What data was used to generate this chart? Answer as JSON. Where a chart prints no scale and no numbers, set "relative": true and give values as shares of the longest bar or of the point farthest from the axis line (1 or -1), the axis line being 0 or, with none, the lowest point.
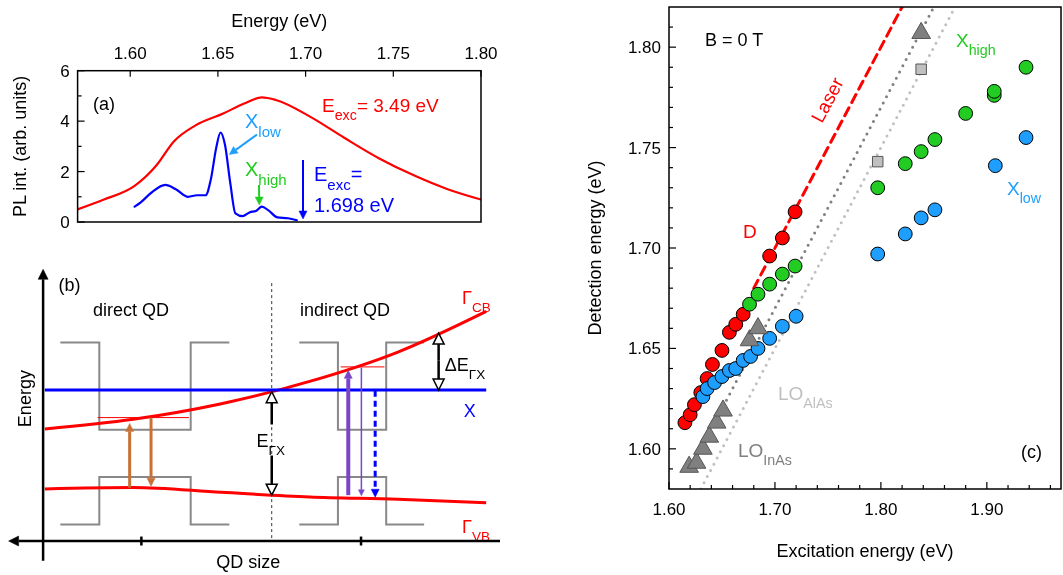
{
  "chart_data": [
    {
      "type": "line",
      "xlabel": "Energy (eV)",
      "ylabel": "PL int. (arb. units)",
      "xlim": [
        1.57,
        1.8
      ],
      "xticks": [
        {
          "value": 1.6,
          "label": "1.60"
        },
        {
          "value": 1.65,
          "label": "1.65"
        },
        {
          "value": 1.7,
          "label": "1.70"
        },
        {
          "value": 1.75,
          "label": "1.75"
        },
        {
          "value": 1.8,
          "label": "1.80"
        }
      ],
      "ylim": [
        0,
        6
      ],
      "yticks": [
        0,
        {
          "value": 1,
          "label": null
        },
        2,
        {
          "value": 3,
          "label": null
        },
        4,
        {
          "value": 5,
          "label": null
        },
        6
      ],
      "series": [
        {
          "name": "E$_{exc}$= 3.49 eV",
          "color": "#ff0000",
          "x": [
            1.57,
            1.585,
            1.6025,
            1.615,
            1.625,
            1.637,
            1.653,
            1.665,
            1.675,
            1.683,
            1.703,
            1.722,
            1.742,
            1.762,
            1.781,
            1.8
          ],
          "values": [
            0.5,
            0.89,
            1.43,
            2.25,
            3.2,
            3.82,
            4.3,
            4.7,
            4.94,
            4.84,
            4.16,
            3.34,
            2.52,
            1.84,
            1.3,
            0.89
          ]
        },
        {
          "color": "#0000ff",
          "x": [
            1.6025,
            1.606,
            1.612,
            1.62,
            1.626,
            1.633,
            1.638,
            1.643,
            1.646,
            1.649,
            1.6515,
            1.654,
            1.657,
            1.66,
            1.664,
            1.668,
            1.672,
            1.675,
            1.679,
            1.684,
            1.69,
            1.695
          ],
          "values": [
            0.61,
            0.78,
            1.16,
            1.47,
            1.3,
            1.0,
            1.06,
            1.06,
            1.7,
            2.93,
            3.55,
            3.07,
            1.57,
            0.34,
            0.23,
            0.38,
            0.45,
            0.61,
            0.45,
            0.18,
            0.15,
            0.07
          ]
        }
      ],
      "annotations": [
        "(a)",
        "X$_{low}$",
        "X$_{high}$",
        "E$_{exc}$= 1.698 eV"
      ]
    },
    {
      "type": "line",
      "relative": true,
      "xlabel": "QD size",
      "ylabel": "Energy",
      "categories": [
        null,
        null,
        null,
        null,
        null,
        null
      ],
      "series": [
        {
          "name": "Γ$_{CB}$",
          "color": "#ff0000",
          "values": [
            0.488,
            0.53,
            0.598,
            0.695,
            0.823,
            1
          ]
        },
        {
          "name": "X",
          "color": "#0000ff",
          "values": [
            0.658,
            0.658,
            0.658,
            0.658,
            0.658,
            0.658
          ]
        },
        {
          "name": "Γ$_{VB}$",
          "color": "#ff0000",
          "values": [
            0.227,
            0.233,
            0.212,
            0.192,
            0.182,
            0.167
          ]
        }
      ],
      "annotations": [
        "(b)",
        "direct QD",
        "indirect QD",
        "E$_{ΓX}$",
        "ΔE$_{ΓX}$"
      ]
    },
    {
      "type": "scatter",
      "xlabel": "Excitation energy (eV)",
      "ylabel": "Detection energy (eV)",
      "xlim": [
        1.6,
        1.97
      ],
      "xticks": [
        {
          "value": 1.6,
          "label": "1.60"
        },
        {
          "value": 1.62,
          "label": null
        },
        {
          "value": 1.64,
          "label": null
        },
        {
          "value": 1.66,
          "label": null
        },
        {
          "value": 1.68,
          "label": null
        },
        {
          "value": 1.7,
          "label": "1.70"
        },
        {
          "value": 1.72,
          "label": null
        },
        {
          "value": 1.74,
          "label": null
        },
        {
          "value": 1.76,
          "label": null
        },
        {
          "value": 1.78,
          "label": null
        },
        {
          "value": 1.8,
          "label": "1.80"
        },
        {
          "value": 1.82,
          "label": null
        },
        {
          "value": 1.84,
          "label": null
        },
        {
          "value": 1.86,
          "label": null
        },
        {
          "value": 1.88,
          "label": null
        },
        {
          "value": 1.9,
          "label": "1.90"
        },
        {
          "value": 1.92,
          "label": null
        },
        {
          "value": 1.94,
          "label": null
        },
        {
          "value": 1.96,
          "label": null
        }
      ],
      "ylim": [
        1.58,
        1.82
      ],
      "yticks": [
        {
          "value": 1.59,
          "label": null
        },
        {
          "value": 1.6,
          "label": "1.60"
        },
        {
          "value": 1.61,
          "label": null
        },
        {
          "value": 1.62,
          "label": null
        },
        {
          "value": 1.63,
          "label": null
        },
        {
          "value": 1.64,
          "label": null
        },
        {
          "value": 1.65,
          "label": "1.65"
        },
        {
          "value": 1.66,
          "label": null
        },
        {
          "value": 1.67,
          "label": null
        },
        {
          "value": 1.68,
          "label": null
        },
        {
          "value": 1.69,
          "label": null
        },
        {
          "value": 1.7,
          "label": "1.70"
        },
        {
          "value": 1.71,
          "label": null
        },
        {
          "value": 1.72,
          "label": null
        },
        {
          "value": 1.73,
          "label": null
        },
        {
          "value": 1.74,
          "label": null
        },
        {
          "value": 1.75,
          "label": "1.75"
        },
        {
          "value": 1.76,
          "label": null
        },
        {
          "value": 1.77,
          "label": null
        },
        {
          "value": 1.78,
          "label": null
        },
        {
          "value": 1.79,
          "label": null
        },
        {
          "value": 1.8,
          "label": "1.80"
        },
        {
          "value": 1.81,
          "label": null
        }
      ],
      "marker": "circle",
      "series": [
        {
          "type": "line",
          "name": "Laser",
          "color": "#ff0000",
          "line_style": "dashed",
          "marker": "none",
          "x": [
            1.68,
            1.82
          ],
          "values": [
            1.68,
            1.82
          ]
        },
        {
          "type": "line",
          "name": "LO$_{InAs}$",
          "color": "#808080",
          "line_style": "dotted",
          "marker": "none",
          "x": [
            1.645,
            1.849
          ],
          "values": [
            1.615,
            1.819
          ]
        },
        {
          "type": "line",
          "name": "LO$_{AlAs}$",
          "color": "#c0c0c0",
          "line_style": "dotted",
          "marker": "none",
          "x": [
            1.63,
            1.87
          ],
          "values": [
            1.58,
            1.82
          ]
        },
        {
          "name": "D",
          "color": "#ff0000",
          "x": [
            1.615,
            1.62,
            1.624,
            1.63,
            1.636,
            1.641,
            1.65,
            1.657,
            1.663,
            1.67,
            1.695,
            1.707,
            1.719
          ],
          "values": [
            1.613,
            1.617,
            1.622,
            1.628,
            1.635,
            1.642,
            1.649,
            1.658,
            1.662,
            1.667,
            1.696,
            1.705,
            1.718
          ]
        },
        {
          "name": "X$_{high}$",
          "color": "#22cc22",
          "x": [
            1.676,
            1.684,
            1.695,
            1.707,
            1.719,
            1.797,
            1.823,
            1.838,
            1.851,
            1.88,
            1.907,
            1.907,
            1.937
          ],
          "values": [
            1.672,
            1.677,
            1.682,
            1.687,
            1.691,
            1.73,
            1.742,
            1.748,
            1.754,
            1.767,
            1.776,
            1.778,
            1.79
          ]
        },
        {
          "name": "X$_{low}$",
          "color": "#1e9fff",
          "x": [
            1.632,
            1.636,
            1.643,
            1.65,
            1.657,
            1.663,
            1.67,
            1.677,
            1.684,
            1.695,
            1.707,
            1.72,
            1.797,
            1.823,
            1.838,
            1.851,
            1.908,
            1.937
          ],
          "values": [
            1.626,
            1.63,
            1.633,
            1.636,
            1.639,
            1.64,
            1.644,
            1.646,
            1.65,
            1.655,
            1.661,
            1.666,
            1.697,
            1.707,
            1.715,
            1.719,
            1.741,
            1.755
          ]
        },
        {
          "color": "#808080",
          "marker": "triangle",
          "x": [
            1.619,
            1.626,
            1.632,
            1.638,
            1.645,
            1.651,
            1.676,
            1.684,
            1.838
          ],
          "values": [
            1.591,
            1.593,
            1.6,
            1.606,
            1.613,
            1.619,
            1.654,
            1.66,
            1.807
          ]
        },
        {
          "color": "#c0c0c0",
          "marker": "square",
          "x": [
            1.797,
            1.838
          ],
          "values": [
            1.743,
            1.789
          ]
        }
      ],
      "annotations": [
        "B = 0 T",
        "(c)"
      ]
    }
  ]
}
